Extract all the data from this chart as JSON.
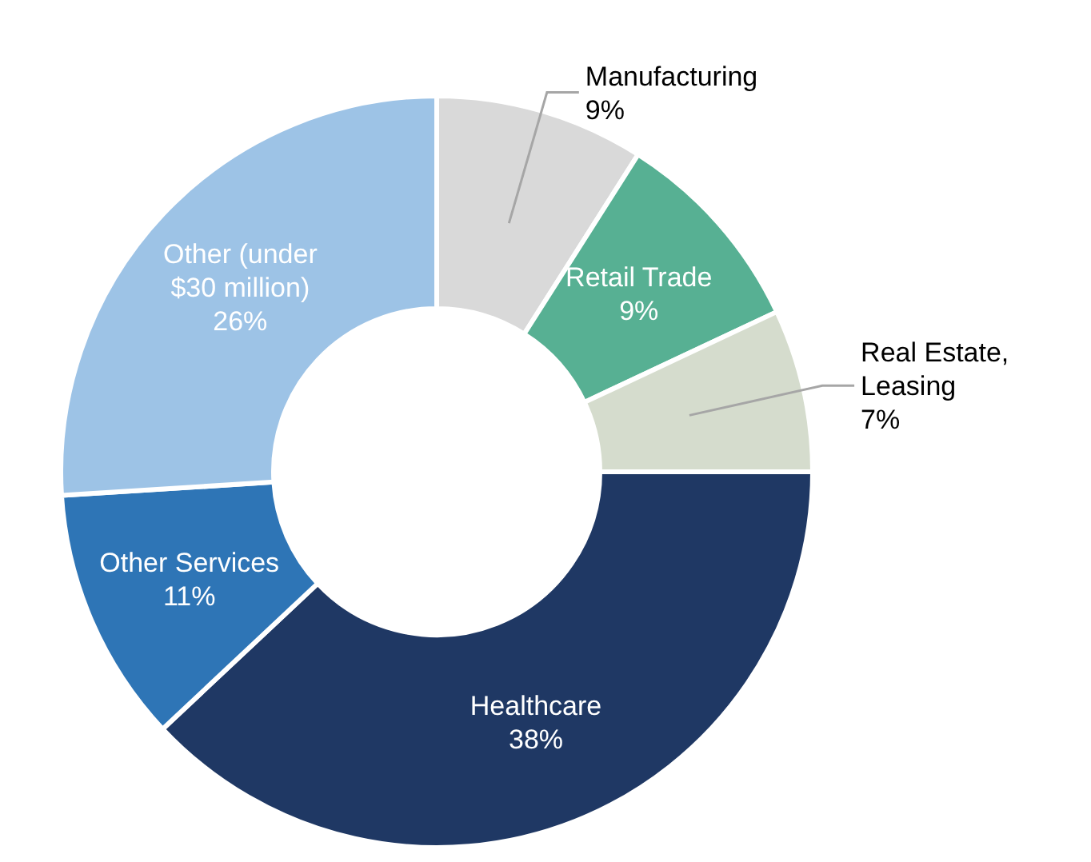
{
  "chart_data": {
    "type": "donut",
    "categories": [
      "Manufacturing",
      "Retail Trade",
      "Real Estate, Leasing",
      "Healthcare",
      "Other Services",
      "Other (under $30 million)"
    ],
    "values": [
      9,
      9,
      7,
      38,
      11,
      26
    ],
    "value_labels": [
      "9%",
      "9%",
      "7%",
      "38%",
      "11%",
      "26%"
    ],
    "colors": [
      "#d9d9d9",
      "#57b093",
      "#d5dccd",
      "#1f3864",
      "#2e75b6",
      "#9dc3e6"
    ]
  }
}
